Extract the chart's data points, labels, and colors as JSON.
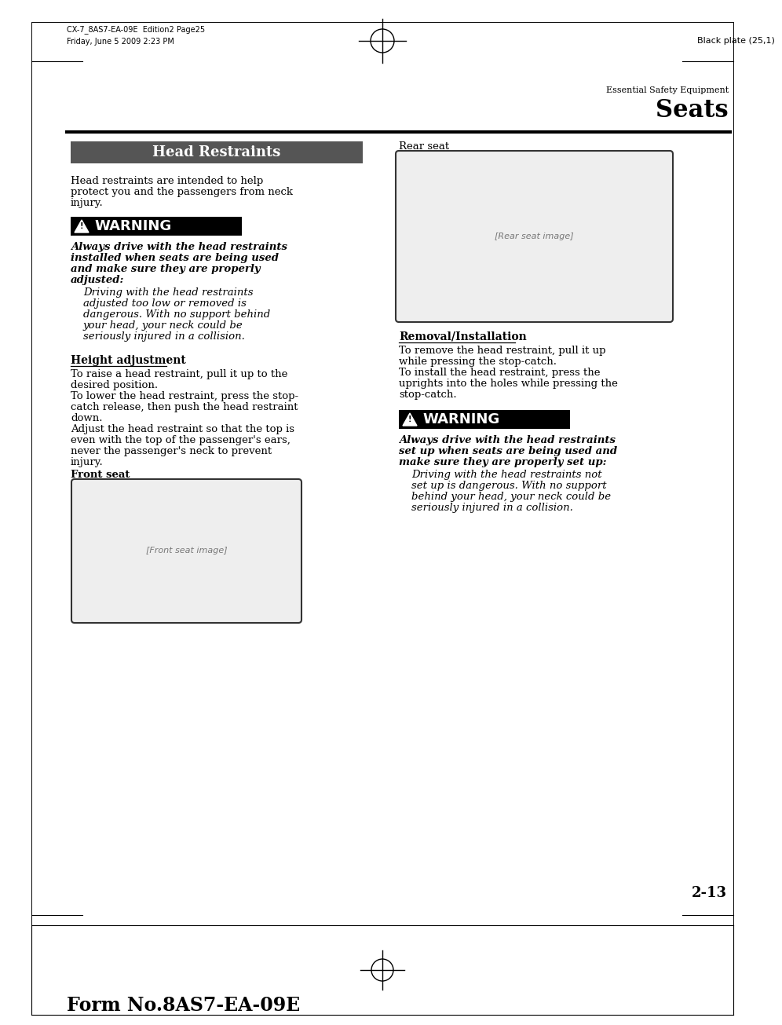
{
  "page_bg": "#ffffff",
  "header_top_left_line1": "CX-7_8AS7-EA-09E  Edition2 Page25",
  "header_top_left_line2": "Friday, June 5 2009 2:23 PM",
  "header_top_right": "Black plate (25,1)",
  "header_section_label": "Essential Safety Equipment",
  "header_section_title": "Seats",
  "section_title": "Head Restraints",
  "section_title_bg": "#555555",
  "section_title_color": "#ffffff",
  "intro_text": "Head restraints are intended to help\nprotect you and the passengers from neck\ninjury.",
  "warning_bg": "#000000",
  "warning_text_color": "#ffffff",
  "warning_label": "WARNING",
  "warning_bold_italic": "Always drive with the head restraints\ninstalled when seats are being used\nand make sure they are properly\nadjusted:",
  "warning_italic": "Driving with the head restraints\nadjusted too low or removed is\ndangerous. With no support behind\nyour head, your neck could be\nseriously injured in a collision.",
  "height_adj_title": "Height adjustment",
  "height_adj_text": "To raise a head restraint, pull it up to the\ndesired position.\nTo lower the head restraint, press the stop-\ncatch release, then push the head restraint\ndown.\nAdjust the head restraint so that the top is\neven with the top of the passenger's ears,\nnever the passenger's neck to prevent\ninjury.",
  "front_seat_label": "Front seat",
  "rear_seat_label": "Rear seat",
  "removal_title": "Removal/Installation",
  "removal_text": "To remove the head restraint, pull it up\nwhile pressing the stop-catch.\nTo install the head restraint, press the\nuprights into the holes while pressing the\nstop-catch.",
  "warning2_bold_italic": "Always drive with the head restraints\nset up when seats are being used and\nmake sure they are properly set up:",
  "warning2_italic": "Driving with the head restraints not\nset up is dangerous. With no support\nbehind your head, your neck could be\nseriously injured in a collision.",
  "page_number": "2-13",
  "footer_text": "Form No.8AS7-EA-09E"
}
